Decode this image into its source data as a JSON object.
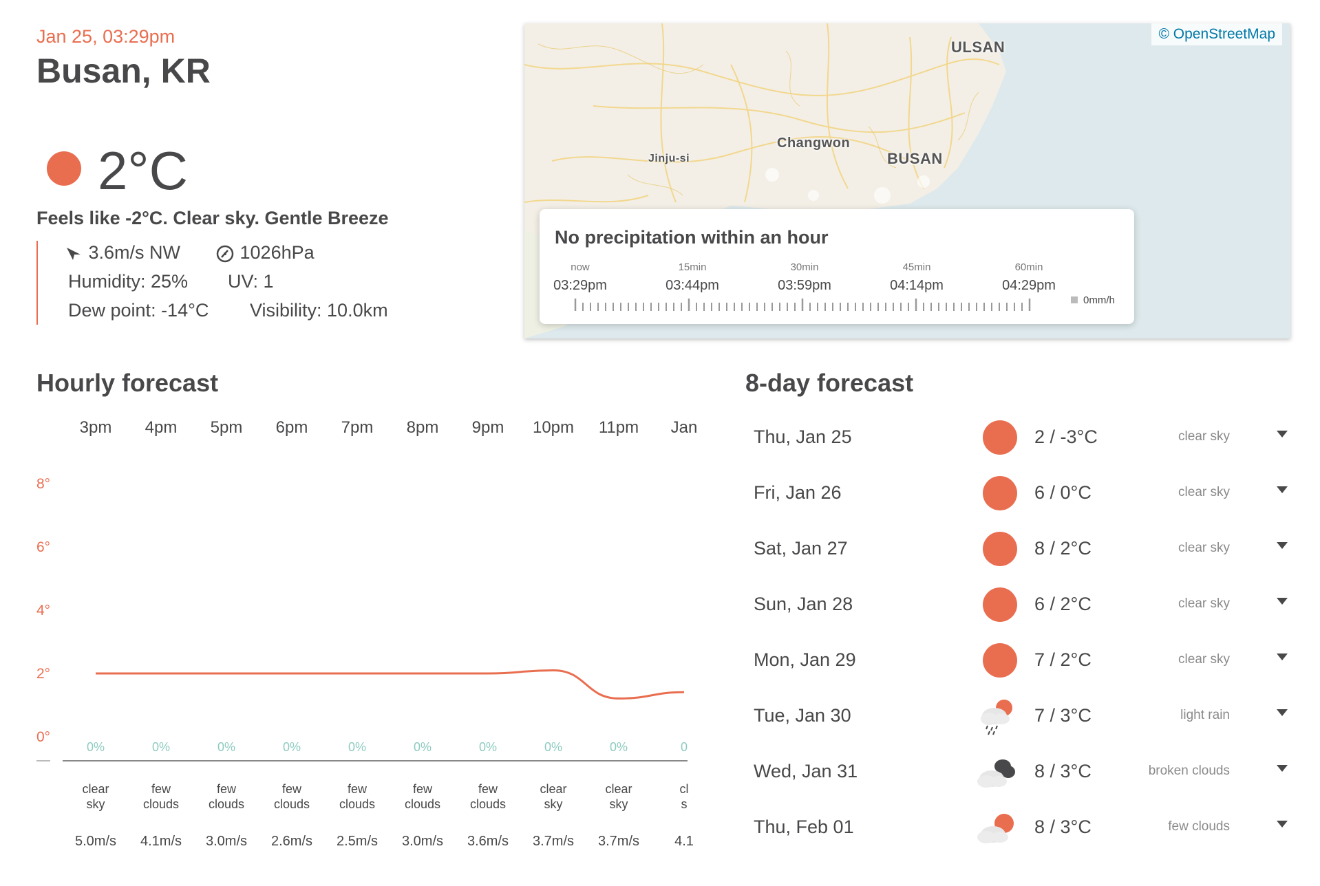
{
  "current": {
    "datetime": "Jan 25, 03:29pm",
    "city": "Busan, KR",
    "temp": "2°C",
    "summary": "Feels like -2°C. Clear sky. Gentle Breeze",
    "wind": "3.6m/s NW",
    "pressure": "1026hPa",
    "humidity": "Humidity: 25%",
    "uv": "UV: 1",
    "dew_point": "Dew point: -14°C",
    "visibility": "Visibility: 10.0km",
    "icon": "sun-icon",
    "accent_color": "#e96e50"
  },
  "map": {
    "attribution": "© OpenStreetMap",
    "labels": [
      "ULSAN",
      "Changwon",
      "Jinju-si",
      "BUSAN"
    ]
  },
  "precipitation": {
    "title": "No precipitation within an hour",
    "marks": [
      {
        "label": "now",
        "time": "03:29pm"
      },
      {
        "label": "15min",
        "time": "03:44pm"
      },
      {
        "label": "30min",
        "time": "03:59pm"
      },
      {
        "label": "45min",
        "time": "04:14pm"
      },
      {
        "label": "60min",
        "time": "04:29pm"
      }
    ],
    "legend": "0mm/h"
  },
  "hourly": {
    "title": "Hourly forecast",
    "hours": [
      "3pm",
      "4pm",
      "5pm",
      "6pm",
      "7pm",
      "8pm",
      "9pm",
      "10pm",
      "11pm",
      "Jan"
    ],
    "y_labels": [
      "8°",
      "6°",
      "4°",
      "2°",
      "0°"
    ],
    "temps": [
      2,
      2,
      2,
      2,
      2,
      2,
      2,
      2.1,
      1.2,
      1.4
    ],
    "pop": [
      "0%",
      "0%",
      "0%",
      "0%",
      "0%",
      "0%",
      "0%",
      "0%",
      "0%",
      "0"
    ],
    "conditions": [
      [
        "clear",
        "sky"
      ],
      [
        "few",
        "clouds"
      ],
      [
        "few",
        "clouds"
      ],
      [
        "few",
        "clouds"
      ],
      [
        "few",
        "clouds"
      ],
      [
        "few",
        "clouds"
      ],
      [
        "few",
        "clouds"
      ],
      [
        "clear",
        "sky"
      ],
      [
        "clear",
        "sky"
      ],
      [
        "cl",
        "s"
      ]
    ],
    "wind": [
      "5.0m/s",
      "4.1m/s",
      "3.0m/s",
      "2.6m/s",
      "2.5m/s",
      "3.0m/s",
      "3.6m/s",
      "3.7m/s",
      "3.7m/s",
      "4.1"
    ],
    "line_color": "#e96e50",
    "pop_color": "#8ecbbf"
  },
  "daily": {
    "title": "8-day forecast",
    "days": [
      {
        "date": "Thu, Jan 25",
        "temp": "2 / -3°C",
        "cond": "clear sky",
        "icon": "sun-icon"
      },
      {
        "date": "Fri, Jan 26",
        "temp": "6 / 0°C",
        "cond": "clear sky",
        "icon": "sun-icon"
      },
      {
        "date": "Sat, Jan 27",
        "temp": "8 / 2°C",
        "cond": "clear sky",
        "icon": "sun-icon"
      },
      {
        "date": "Sun, Jan 28",
        "temp": "6 / 2°C",
        "cond": "clear sky",
        "icon": "sun-icon"
      },
      {
        "date": "Mon, Jan 29",
        "temp": "7 / 2°C",
        "cond": "clear sky",
        "icon": "sun-icon"
      },
      {
        "date": "Tue, Jan 30",
        "temp": "7 / 3°C",
        "cond": "light rain",
        "icon": "rain-icon"
      },
      {
        "date": "Wed, Jan 31",
        "temp": "8 / 3°C",
        "cond": "broken clouds",
        "icon": "broken-clouds-icon"
      },
      {
        "date": "Thu, Feb 01",
        "temp": "8 / 3°C",
        "cond": "few clouds",
        "icon": "few-clouds-icon"
      }
    ]
  }
}
